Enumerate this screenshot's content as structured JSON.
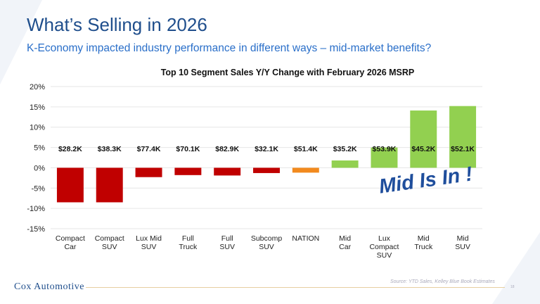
{
  "header": {
    "title": "What’s Selling in 2026",
    "subtitle": "K-Economy impacted industry performance in different ways – mid-market benefits?"
  },
  "annotation": "Mid Is In !",
  "footer": {
    "logo": "Cox Automotive",
    "source": "Source: YTD Sales, Kelley Blue Book Estimates",
    "page": "18"
  },
  "colors": {
    "negative": "#c00000",
    "nation": "#f28a1e",
    "positive": "#92d050",
    "title": "#1f4e8c"
  },
  "chart_data": {
    "type": "bar",
    "title": "Top 10 Segment Sales Y/Y Change with February 2026 MSRP",
    "xlabel": "",
    "ylabel": "",
    "ylim": [
      -15,
      20
    ],
    "yticks": [
      20,
      15,
      10,
      5,
      0,
      -5,
      -10,
      -15
    ],
    "ytick_labels": [
      "20%",
      "15%",
      "10%",
      "5%",
      "0%",
      "-5%",
      "-10%",
      "-15%"
    ],
    "grid": true,
    "categories": [
      [
        "Compact",
        "Car"
      ],
      [
        "Compact",
        "SUV"
      ],
      [
        "Lux Mid",
        "SUV"
      ],
      [
        "Full",
        "Truck"
      ],
      [
        "Full",
        "SUV"
      ],
      [
        "Subcomp",
        "SUV"
      ],
      [
        "NATION"
      ],
      [
        "Mid",
        "Car"
      ],
      [
        "Lux",
        "Compact",
        "SUV"
      ],
      [
        "Mid",
        "Truck"
      ],
      [
        "Mid",
        "SUV"
      ]
    ],
    "values": [
      -8.5,
      -8.5,
      -2.3,
      -1.8,
      -1.9,
      -1.3,
      -1.2,
      1.8,
      5.0,
      14.1,
      15.2
    ],
    "msrp_labels": [
      "$28.2K",
      "$38.3K",
      "$77.4K",
      "$70.1K",
      "$82.9K",
      "$32.1K",
      "$51.4K",
      "$35.2K",
      "$53.9K",
      "$45.2K",
      "$52.1K"
    ],
    "bar_groups": [
      "negative",
      "negative",
      "negative",
      "negative",
      "negative",
      "negative",
      "nation",
      "positive",
      "positive",
      "positive",
      "positive"
    ]
  }
}
